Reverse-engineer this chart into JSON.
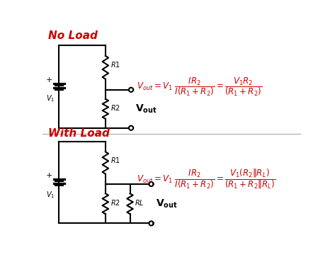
{
  "bg_color": "#ffffff",
  "circuit_color": "#000000",
  "label_color": "#cc0000",
  "title_no_load": "No Load",
  "title_with_load": "With Load",
  "fig_width": 4.73,
  "fig_height": 3.7
}
